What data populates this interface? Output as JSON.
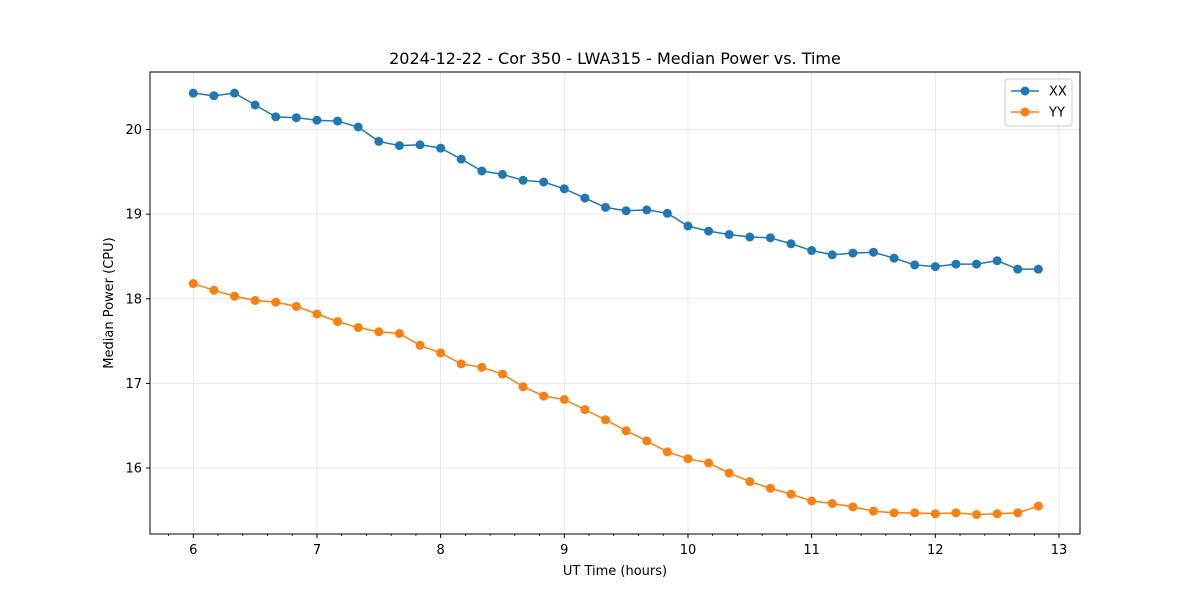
{
  "chart_data": {
    "type": "line",
    "title": "2024-12-22 - Cor 350 - LWA315 - Median Power vs. Time",
    "xlabel": "UT Time (hours)",
    "ylabel": "Median Power (CPU)",
    "xlim": [
      5.65,
      13.17
    ],
    "ylim": [
      15.22,
      20.68
    ],
    "xticks": [
      6,
      7,
      8,
      9,
      10,
      11,
      12,
      13
    ],
    "yticks": [
      16,
      17,
      18,
      19,
      20
    ],
    "xminor_step": 0.2,
    "grid": true,
    "legend_position": "top-right",
    "x": [
      6.0,
      6.1667,
      6.3333,
      6.5,
      6.6667,
      6.8333,
      7.0,
      7.1667,
      7.3333,
      7.5,
      7.6667,
      7.8333,
      8.0,
      8.1667,
      8.3333,
      8.5,
      8.6667,
      8.8333,
      9.0,
      9.1667,
      9.3333,
      9.5,
      9.6667,
      9.8333,
      10.0,
      10.1667,
      10.3333,
      10.5,
      10.6667,
      10.8333,
      11.0,
      11.1667,
      11.3333,
      11.5,
      11.6667,
      11.8333,
      12.0,
      12.1667,
      12.3333,
      12.5,
      12.6667,
      12.8333
    ],
    "series": [
      {
        "name": "XX",
        "color": "#1f77b4",
        "values": [
          20.43,
          20.4,
          20.43,
          20.29,
          20.15,
          20.14,
          20.11,
          20.1,
          20.03,
          19.86,
          19.81,
          19.82,
          19.78,
          19.65,
          19.51,
          19.47,
          19.4,
          19.38,
          19.3,
          19.19,
          19.08,
          19.04,
          19.05,
          19.01,
          18.86,
          18.8,
          18.76,
          18.73,
          18.72,
          18.65,
          18.57,
          18.52,
          18.54,
          18.55,
          18.48,
          18.4,
          18.38,
          18.41,
          18.41,
          18.45,
          18.35,
          18.35
        ]
      },
      {
        "name": "YY",
        "color": "#ff7f0e",
        "values": [
          18.18,
          18.1,
          18.03,
          17.98,
          17.96,
          17.91,
          17.82,
          17.73,
          17.66,
          17.61,
          17.59,
          17.45,
          17.36,
          17.23,
          17.19,
          17.11,
          16.96,
          16.85,
          16.81,
          16.69,
          16.57,
          16.44,
          16.32,
          16.19,
          16.11,
          16.06,
          15.94,
          15.84,
          15.76,
          15.69,
          15.61,
          15.58,
          15.54,
          15.49,
          15.47,
          15.47,
          15.46,
          15.47,
          15.45,
          15.46,
          15.47,
          15.55
        ]
      }
    ]
  }
}
